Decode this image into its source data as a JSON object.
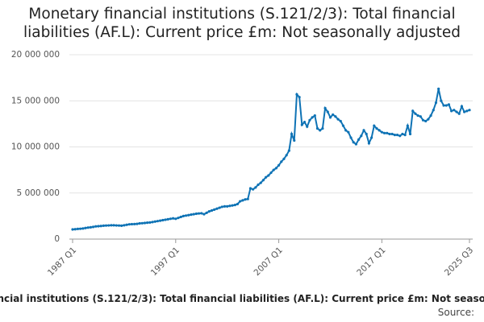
{
  "chart_data": {
    "type": "line",
    "title": "Monetary financial institutions (S.121/2/3): Total financial liabilities (AF.L): Current price £m: Not seasonally adjusted",
    "source": "Source:",
    "categories": [
      "1987 Q1",
      null,
      null,
      null,
      null,
      null,
      null,
      null,
      null,
      null,
      null,
      null,
      null,
      null,
      null,
      null,
      null,
      null,
      null,
      null,
      null,
      null,
      null,
      null,
      null,
      null,
      null,
      null,
      null,
      null,
      null,
      null,
      null,
      null,
      null,
      null,
      null,
      null,
      null,
      null,
      "1997 Q1",
      null,
      null,
      null,
      null,
      null,
      null,
      null,
      null,
      null,
      null,
      null,
      null,
      null,
      null,
      null,
      null,
      null,
      null,
      null,
      null,
      null,
      null,
      null,
      null,
      null,
      null,
      null,
      null,
      null,
      null,
      null,
      null,
      null,
      null,
      null,
      null,
      null,
      null,
      null,
      "2007 Q1",
      null,
      null,
      null,
      null,
      null,
      null,
      null,
      null,
      null,
      null,
      null,
      null,
      null,
      null,
      null,
      null,
      null,
      null,
      null,
      null,
      null,
      null,
      null,
      null,
      null,
      null,
      null,
      null,
      null,
      null,
      null,
      null,
      null,
      null,
      null,
      null,
      null,
      null,
      null,
      "2017 Q1",
      null,
      null,
      null,
      null,
      null,
      null,
      null,
      null,
      null,
      null,
      null,
      null,
      null,
      null,
      null,
      null,
      null,
      null,
      null,
      null,
      null,
      null,
      null,
      null,
      null,
      null,
      null,
      null,
      null,
      null,
      null,
      null,
      null,
      "2025 Q3"
    ],
    "series": [
      {
        "name": "Total financial liabilities",
        "color": "#0f73b5",
        "values": [
          1050000,
          1070000,
          1100000,
          1120000,
          1150000,
          1200000,
          1250000,
          1280000,
          1320000,
          1380000,
          1400000,
          1420000,
          1450000,
          1470000,
          1480000,
          1500000,
          1500000,
          1480000,
          1470000,
          1450000,
          1500000,
          1550000,
          1600000,
          1620000,
          1630000,
          1650000,
          1700000,
          1720000,
          1750000,
          1780000,
          1800000,
          1850000,
          1900000,
          1950000,
          2000000,
          2050000,
          2100000,
          2150000,
          2200000,
          2250000,
          2200000,
          2300000,
          2400000,
          2500000,
          2550000,
          2600000,
          2650000,
          2700000,
          2750000,
          2780000,
          2800000,
          2700000,
          2850000,
          3000000,
          3100000,
          3200000,
          3300000,
          3400000,
          3500000,
          3550000,
          3550000,
          3600000,
          3650000,
          3700000,
          3800000,
          4100000,
          4200000,
          4300000,
          4350000,
          5500000,
          5400000,
          5600000,
          5900000,
          6100000,
          6400000,
          6700000,
          6900000,
          7200000,
          7500000,
          7700000,
          8000000,
          8400000,
          8700000,
          9100000,
          9600000,
          11400000,
          10700000,
          15700000,
          15400000,
          12400000,
          12700000,
          12200000,
          12900000,
          13200000,
          13400000,
          12000000,
          11800000,
          12000000,
          14200000,
          13800000,
          13200000,
          13500000,
          13300000,
          13000000,
          12800000,
          12300000,
          11800000,
          11600000,
          11000000,
          10500000,
          10300000,
          10800000,
          11200000,
          11800000,
          11400000,
          10400000,
          11000000,
          12300000,
          12000000,
          11800000,
          11600000,
          11500000,
          11500000,
          11400000,
          11400000,
          11300000,
          11300000,
          11200000,
          11400000,
          11300000,
          12300000,
          11400000,
          13900000,
          13600000,
          13400000,
          13300000,
          12900000,
          12800000,
          13000000,
          13400000,
          14000000,
          14800000,
          16300000,
          15000000,
          14500000,
          14500000,
          14600000,
          13900000,
          14000000,
          13800000,
          13600000,
          14400000,
          13800000,
          13900000,
          14000000
        ]
      }
    ],
    "ylim": [
      0,
      20000000
    ],
    "yticks": [
      0,
      {
        "value": 5000000,
        "label": "5 000 000"
      },
      {
        "value": 10000000,
        "label": "10 000 000"
      },
      {
        "value": 15000000,
        "label": "15 000 000"
      },
      {
        "value": 20000000,
        "label": "20 000 000"
      }
    ],
    "grid": true
  }
}
